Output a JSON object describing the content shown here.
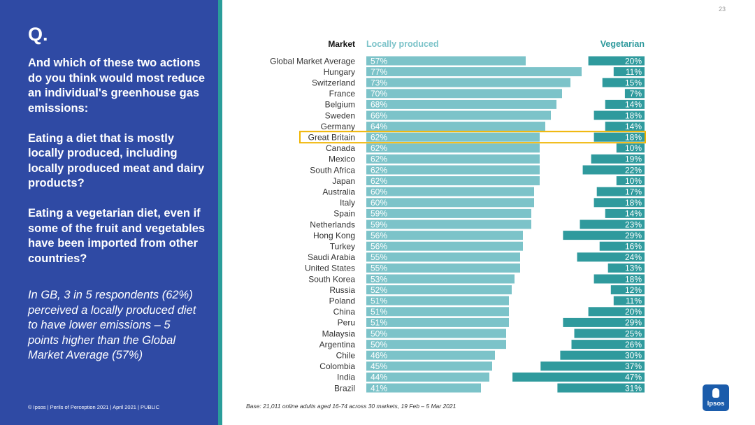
{
  "page_number": "23",
  "left_panel": {
    "q_mark": "Q.",
    "question": "And which of these two actions do you think would most reduce an individual's greenhouse gas emissions:",
    "option_a": "Eating a diet that is mostly locally produced, including locally produced meat and dairy products?",
    "option_b": "Eating a vegetarian diet, even if some of the fruit and vegetables have been imported from other countries?",
    "insight": "In GB, 3 in 5 respondents (62%) perceived a locally produced diet to have lower emissions – 5 points higher than the Global Market Average (57%)",
    "footer": "© Ipsos | Perils of Perception 2021 | April 2021 | PUBLIC"
  },
  "base_note": "Base: 21,011 online adults aged 16-74 across 30 markets,  19 Feb – 5 Mar 2021",
  "logo_text": "Ipsos",
  "colors": {
    "panel": "#2f4aa4",
    "accent": "#2a9d9a",
    "local_bar": "#7cc3c9",
    "veg_bar": "#2f9a9d",
    "highlight": "#f0b400"
  },
  "chart_data": {
    "type": "bar",
    "title": "",
    "category_header": "Market",
    "highlight": "Great Britain",
    "categories": [
      "Global Market Average",
      "Hungary",
      "Switzerland",
      "France",
      "Belgium",
      "Sweden",
      "Germany",
      "Great Britain",
      "Canada",
      "Mexico",
      "South Africa",
      "Japan",
      "Australia",
      "Italy",
      "Spain",
      "Netherlands",
      "Hong Kong",
      "Turkey",
      "Saudi Arabia",
      "United States",
      "South Korea",
      "Russia",
      "Poland",
      "China",
      "Peru",
      "Malaysia",
      "Argentina",
      "Chile",
      "Colombia",
      "India",
      "Brazil"
    ],
    "series": [
      {
        "name": "Locally produced",
        "values": [
          57,
          77,
          73,
          70,
          68,
          66,
          64,
          62,
          62,
          62,
          62,
          62,
          60,
          60,
          59,
          59,
          56,
          56,
          55,
          55,
          53,
          52,
          51,
          51,
          51,
          50,
          50,
          46,
          45,
          44,
          41
        ]
      },
      {
        "name": "Vegetarian",
        "values": [
          20,
          11,
          15,
          7,
          14,
          18,
          14,
          18,
          10,
          19,
          22,
          10,
          17,
          18,
          14,
          23,
          29,
          16,
          24,
          13,
          18,
          12,
          11,
          20,
          29,
          25,
          26,
          30,
          37,
          47,
          31
        ]
      }
    ],
    "value_format": "{v}%",
    "xlim": [
      0,
      100
    ]
  }
}
